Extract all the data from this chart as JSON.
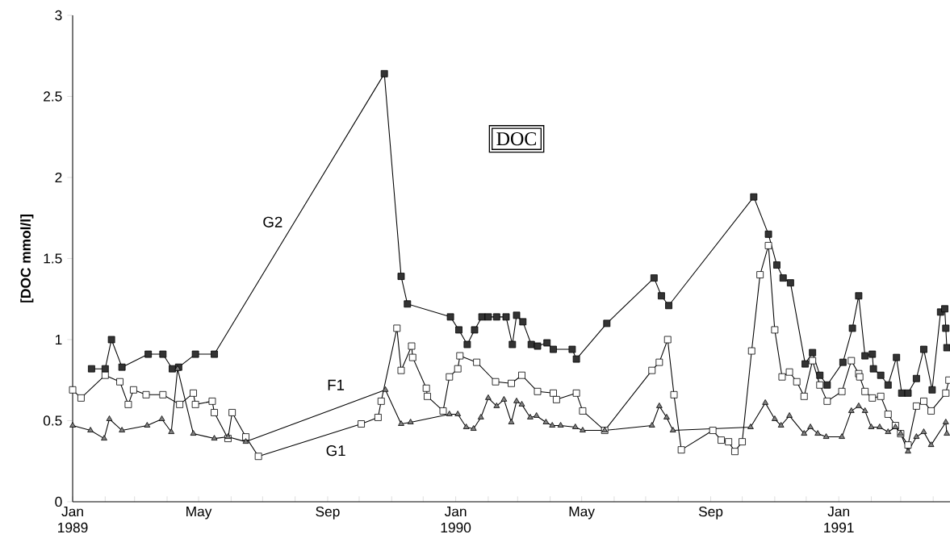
{
  "chart_data": {
    "type": "line",
    "ylabel": "[DOC  mmol/l]",
    "annotations": [
      "DOC"
    ],
    "xlim": [
      "1989-01-01",
      "1991-04-17"
    ],
    "ylim": [
      0,
      3
    ],
    "yticks": [
      0,
      0.5,
      1,
      1.5,
      2,
      2.5,
      3
    ],
    "xticks": [
      {
        "value": "1989-01-01",
        "label": "Jan 1989"
      },
      {
        "value": "1989-02-01",
        "label": null
      },
      {
        "value": "1989-03-01",
        "label": null
      },
      {
        "value": "1989-04-01",
        "label": null
      },
      {
        "value": "1989-05-01",
        "label": "May"
      },
      {
        "value": "1989-06-01",
        "label": null
      },
      {
        "value": "1989-07-01",
        "label": null
      },
      {
        "value": "1989-08-01",
        "label": null
      },
      {
        "value": "1989-09-01",
        "label": "Sep"
      },
      {
        "value": "1989-10-01",
        "label": null
      },
      {
        "value": "1989-11-01",
        "label": null
      },
      {
        "value": "1989-12-01",
        "label": null
      },
      {
        "value": "1990-01-01",
        "label": "Jan 1990"
      },
      {
        "value": "1990-02-01",
        "label": null
      },
      {
        "value": "1990-03-01",
        "label": null
      },
      {
        "value": "1990-04-01",
        "label": null
      },
      {
        "value": "1990-05-01",
        "label": "May"
      },
      {
        "value": "1990-06-01",
        "label": null
      },
      {
        "value": "1990-07-01",
        "label": null
      },
      {
        "value": "1990-08-01",
        "label": null
      },
      {
        "value": "1990-09-01",
        "label": "Sep"
      },
      {
        "value": "1990-10-01",
        "label": null
      },
      {
        "value": "1990-11-01",
        "label": null
      },
      {
        "value": "1990-12-01",
        "label": null
      },
      {
        "value": "1991-01-01",
        "label": "Jan 1991"
      },
      {
        "value": "1991-02-01",
        "label": null
      },
      {
        "value": "1991-03-01",
        "label": null
      },
      {
        "value": "1991-04-01",
        "label": null
      }
    ],
    "series": [
      {
        "name": "G2",
        "color": "#333333",
        "marker": "square",
        "x": [
          "1989-01-19",
          "1989-02-01",
          "1989-02-07",
          "1989-02-17",
          "1989-03-14",
          "1989-03-28",
          "1989-04-06",
          "1989-04-12",
          "1989-04-28",
          "1989-05-16",
          "1989-10-25",
          "1989-11-10",
          "1989-11-16",
          "1989-12-27",
          "1990-01-04",
          "1990-01-12",
          "1990-01-19",
          "1990-01-26",
          "1990-02-01",
          "1990-02-09",
          "1990-02-18",
          "1990-02-24",
          "1990-02-28",
          "1990-03-06",
          "1990-03-14",
          "1990-03-20",
          "1990-03-29",
          "1990-04-04",
          "1990-04-22",
          "1990-04-26",
          "1990-05-25",
          "1990-07-09",
          "1990-07-16",
          "1990-07-23",
          "1990-10-12",
          "1990-10-26",
          "1990-11-03",
          "1990-11-09",
          "1990-11-16",
          "1990-11-30",
          "1990-12-07",
          "1990-12-14",
          "1990-12-21",
          "1991-01-05",
          "1991-01-14",
          "1991-01-20",
          "1991-01-26",
          "1991-02-02",
          "1991-02-03",
          "1991-02-10",
          "1991-02-17",
          "1991-02-25",
          "1991-03-02",
          "1991-03-08",
          "1991-03-16",
          "1991-03-23",
          "1991-03-31",
          "1991-04-08",
          "1991-04-12",
          "1991-04-13",
          "1991-04-14"
        ],
        "values": [
          0.82,
          0.82,
          1.0,
          0.83,
          0.91,
          0.91,
          0.82,
          0.83,
          0.91,
          0.91,
          2.64,
          1.39,
          1.22,
          1.14,
          1.06,
          0.97,
          1.06,
          1.14,
          1.14,
          1.14,
          1.14,
          0.97,
          1.15,
          1.11,
          0.97,
          0.96,
          0.98,
          0.94,
          0.94,
          0.88,
          1.1,
          1.38,
          1.27,
          1.21,
          1.88,
          1.65,
          1.46,
          1.38,
          1.35,
          0.85,
          0.92,
          0.78,
          0.72,
          0.86,
          1.07,
          1.27,
          0.9,
          0.91,
          0.82,
          0.78,
          0.72,
          0.89,
          0.67,
          0.67,
          0.76,
          0.94,
          0.69,
          1.17,
          1.19,
          1.07,
          0.95
        ]
      },
      {
        "name": "G1",
        "color": "#ffffff",
        "marker": "square",
        "x": [
          "1989-01-01",
          "1989-01-09",
          "1989-02-01",
          "1989-02-15",
          "1989-02-23",
          "1989-02-28",
          "1989-03-12",
          "1989-03-28",
          "1989-04-13",
          "1989-04-26",
          "1989-04-28",
          "1989-05-14",
          "1989-05-16",
          "1989-05-29",
          "1989-06-02",
          "1989-06-15",
          "1989-06-27",
          "1989-10-03",
          "1989-10-19",
          "1989-10-22",
          "1989-11-06",
          "1989-11-10",
          "1989-11-20",
          "1989-11-21",
          "1989-12-04",
          "1989-12-05",
          "1989-12-20",
          "1989-12-26",
          "1990-01-03",
          "1990-01-05",
          "1990-01-21",
          "1990-02-08",
          "1990-02-23",
          "1990-03-05",
          "1990-03-20",
          "1990-04-04",
          "1990-04-07",
          "1990-04-26",
          "1990-05-02",
          "1990-05-23",
          "1990-07-07",
          "1990-07-14",
          "1990-07-22",
          "1990-07-28",
          "1990-08-04",
          "1990-09-03",
          "1990-09-11",
          "1990-09-18",
          "1990-09-24",
          "1990-10-01",
          "1990-10-10",
          "1990-10-18",
          "1990-10-26",
          "1990-11-01",
          "1990-11-08",
          "1990-11-15",
          "1990-11-22",
          "1990-11-29",
          "1990-12-07",
          "1990-12-14",
          "1990-12-21",
          "1991-01-04",
          "1991-01-13",
          "1991-01-20",
          "1991-01-21",
          "1991-01-26",
          "1991-02-02",
          "1991-02-10",
          "1991-02-17",
          "1991-02-24",
          "1991-03-01",
          "1991-03-08",
          "1991-03-16",
          "1991-03-23",
          "1991-03-30",
          "1991-04-13",
          "1991-04-16"
        ],
        "values": [
          0.69,
          0.64,
          0.78,
          0.74,
          0.6,
          0.69,
          0.66,
          0.66,
          0.6,
          0.67,
          0.6,
          0.62,
          0.55,
          0.39,
          0.55,
          0.4,
          0.28,
          0.48,
          0.52,
          0.62,
          1.07,
          0.81,
          0.96,
          0.89,
          0.7,
          0.65,
          0.56,
          0.77,
          0.82,
          0.9,
          0.86,
          0.74,
          0.73,
          0.78,
          0.68,
          0.67,
          0.63,
          0.67,
          0.56,
          0.44,
          0.81,
          0.86,
          1.0,
          0.66,
          0.32,
          0.44,
          0.38,
          0.37,
          0.31,
          0.37,
          0.93,
          1.4,
          1.58,
          1.06,
          0.77,
          0.8,
          0.74,
          0.65,
          0.87,
          0.72,
          0.62,
          0.68,
          0.87,
          0.79,
          0.77,
          0.68,
          0.64,
          0.65,
          0.54,
          0.47,
          0.42,
          0.35,
          0.59,
          0.62,
          0.56,
          0.67,
          0.75
        ]
      },
      {
        "name": "F1",
        "color": "#808080",
        "marker": "triangle",
        "x": [
          "1989-01-01",
          "1989-01-18",
          "1989-01-31",
          "1989-02-05",
          "1989-02-17",
          "1989-03-13",
          "1989-03-27",
          "1989-04-05",
          "1989-04-11",
          "1989-04-26",
          "1989-05-16",
          "1989-05-29",
          "1989-06-15",
          "1989-10-26",
          "1989-11-10",
          "1989-11-19",
          "1989-12-26",
          "1990-01-03",
          "1990-01-11",
          "1990-01-18",
          "1990-01-25",
          "1990-02-01",
          "1990-02-09",
          "1990-02-16",
          "1990-02-23",
          "1990-02-28",
          "1990-03-05",
          "1990-03-13",
          "1990-03-19",
          "1990-03-28",
          "1990-04-03",
          "1990-04-11",
          "1990-04-25",
          "1990-05-02",
          "1990-05-23",
          "1990-07-07",
          "1990-07-14",
          "1990-07-21",
          "1990-07-27",
          "1990-10-09",
          "1990-10-23",
          "1990-11-01",
          "1990-11-07",
          "1990-11-15",
          "1990-11-29",
          "1990-12-05",
          "1990-12-12",
          "1990-12-20",
          "1991-01-04",
          "1991-01-13",
          "1991-01-20",
          "1991-01-26",
          "1991-02-01",
          "1991-02-09",
          "1991-02-17",
          "1991-02-24",
          "1991-03-01",
          "1991-03-08",
          "1991-03-16",
          "1991-03-23",
          "1991-03-30",
          "1991-04-13",
          "1991-04-14"
        ],
        "values": [
          0.47,
          0.44,
          0.39,
          0.51,
          0.44,
          0.47,
          0.51,
          0.43,
          0.82,
          0.42,
          0.39,
          0.4,
          0.37,
          0.69,
          0.48,
          0.49,
          0.54,
          0.54,
          0.46,
          0.45,
          0.52,
          0.64,
          0.59,
          0.63,
          0.49,
          0.62,
          0.6,
          0.52,
          0.53,
          0.49,
          0.47,
          0.47,
          0.46,
          0.44,
          0.44,
          0.47,
          0.59,
          0.52,
          0.44,
          0.46,
          0.61,
          0.51,
          0.47,
          0.53,
          0.42,
          0.46,
          0.42,
          0.4,
          0.4,
          0.56,
          0.59,
          0.56,
          0.46,
          0.46,
          0.43,
          0.46,
          0.42,
          0.31,
          0.4,
          0.43,
          0.35,
          0.49,
          0.42
        ]
      }
    ]
  }
}
